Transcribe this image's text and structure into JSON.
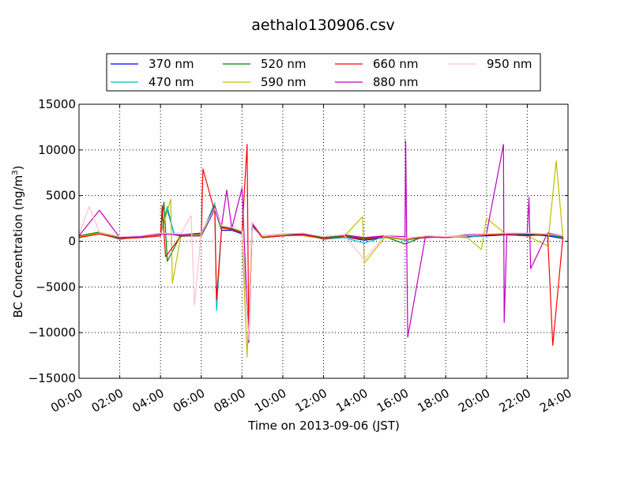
{
  "chart_data": {
    "type": "line",
    "title": "aethalo130906.csv",
    "xlabel": "Time on 2013-09-06 (JST)",
    "ylabel": "BC Concentration (ng/m³)",
    "ylabel_main": "BC Concentration (ng/m",
    "ylabel_sup": "3",
    "ylabel_end": ")",
    "xlim": [
      "2013-09-06 00:00",
      "2013-09-06 24:00"
    ],
    "ylim": [
      -15000,
      15000
    ],
    "x_ticks": [
      "00:00",
      "02:00",
      "04:00",
      "06:00",
      "08:00",
      "10:00",
      "12:00",
      "14:00",
      "16:00",
      "18:00",
      "20:00",
      "22:00",
      "24:00"
    ],
    "y_ticks": [
      "−15000",
      "−10000",
      "−5000",
      "0",
      "5000",
      "10000",
      "15000"
    ],
    "grid": true,
    "legend_position": "top, above plot",
    "series": [
      {
        "name": "370 nm",
        "color": "#0000ff",
        "x": [
          "00:00",
          "01:00",
          "02:00",
          "03:00",
          "04:00",
          "04:20",
          "04:40",
          "05:00",
          "06:00",
          "06:40",
          "07:00",
          "07:30",
          "08:00",
          "08:20",
          "08:30",
          "09:00",
          "10:00",
          "11:00",
          "12:00",
          "13:00",
          "14:00",
          "15:00",
          "16:00",
          "17:00",
          "18:00",
          "19:00",
          "20:00",
          "21:00",
          "22:00",
          "23:00",
          "23:45"
        ],
        "y": [
          500,
          800,
          300,
          400,
          600,
          3500,
          800,
          600,
          600,
          3500,
          1200,
          1200,
          800,
          -10500,
          1800,
          400,
          600,
          700,
          300,
          500,
          100,
          400,
          200,
          500,
          400,
          500,
          600,
          700,
          700,
          600,
          300
        ]
      },
      {
        "name": "470 nm",
        "color": "#00bfbf",
        "x": [
          "00:00",
          "01:00",
          "02:00",
          "03:00",
          "04:00",
          "04:20",
          "04:40",
          "05:00",
          "06:00",
          "06:40",
          "06:45",
          "07:00",
          "07:30",
          "08:00",
          "08:20",
          "08:30",
          "09:00",
          "10:00",
          "11:00",
          "12:00",
          "13:00",
          "14:00",
          "15:00",
          "16:00",
          "17:00",
          "18:00",
          "19:00",
          "20:00",
          "21:00",
          "22:00",
          "23:00",
          "23:45"
        ],
        "y": [
          400,
          900,
          200,
          500,
          700,
          3800,
          700,
          500,
          700,
          4200,
          -7600,
          1500,
          1300,
          900,
          -11000,
          1600,
          500,
          700,
          800,
          200,
          400,
          -200,
          500,
          100,
          400,
          500,
          400,
          700,
          700,
          600,
          700,
          400
        ]
      },
      {
        "name": "520 nm",
        "color": "#007f00",
        "x": [
          "00:00",
          "01:00",
          "02:00",
          "03:00",
          "04:00",
          "04:10",
          "04:20",
          "05:00",
          "06:00",
          "06:40",
          "07:00",
          "07:30",
          "08:00",
          "08:20",
          "08:30",
          "09:00",
          "10:00",
          "11:00",
          "12:00",
          "13:00",
          "14:00",
          "15:00",
          "16:00",
          "17:00",
          "18:00",
          "19:00",
          "20:00",
          "21:00",
          "22:00",
          "23:00",
          "23:45"
        ],
        "y": [
          600,
          1000,
          400,
          500,
          800,
          4300,
          -2200,
          700,
          800,
          3900,
          1600,
          1400,
          1000,
          -9800,
          2000,
          500,
          800,
          700,
          400,
          600,
          300,
          500,
          -300,
          600,
          500,
          600,
          700,
          800,
          800,
          700,
          500
        ]
      },
      {
        "name": "590 nm",
        "color": "#bfbf00",
        "x": [
          "00:00",
          "01:00",
          "02:00",
          "03:00",
          "04:00",
          "04:30",
          "04:35",
          "05:00",
          "06:00",
          "06:40",
          "07:00",
          "07:30",
          "08:00",
          "08:15",
          "08:30",
          "09:00",
          "10:00",
          "11:00",
          "12:00",
          "13:00",
          "13:55",
          "14:00",
          "15:00",
          "16:00",
          "17:00",
          "18:00",
          "19:00",
          "19:45",
          "20:00",
          "21:00",
          "22:00",
          "23:00",
          "23:25",
          "23:45"
        ],
        "y": [
          500,
          900,
          300,
          400,
          700,
          4600,
          -4600,
          600,
          700,
          3700,
          1400,
          1300,
          900,
          -12700,
          1900,
          500,
          700,
          600,
          300,
          500,
          2700,
          -2400,
          400,
          200,
          500,
          400,
          500,
          -900,
          2500,
          700,
          600,
          -500,
          8800,
          400
        ]
      },
      {
        "name": "660 nm",
        "color": "#ff0000",
        "x": [
          "00:00",
          "01:00",
          "02:00",
          "03:00",
          "04:00",
          "04:05",
          "04:15",
          "05:00",
          "06:00",
          "06:05",
          "06:40",
          "06:45",
          "07:00",
          "07:30",
          "08:00",
          "08:15",
          "08:20",
          "08:30",
          "09:00",
          "10:00",
          "11:00",
          "12:00",
          "13:00",
          "14:00",
          "15:00",
          "16:00",
          "17:00",
          "18:00",
          "19:00",
          "20:00",
          "21:00",
          "22:00",
          "23:00",
          "23:15",
          "23:45"
        ],
        "y": [
          400,
          800,
          300,
          400,
          600,
          3900,
          -1700,
          600,
          600,
          7900,
          3200,
          -6400,
          1500,
          1300,
          900,
          10600,
          -11000,
          1900,
          400,
          600,
          700,
          300,
          500,
          200,
          500,
          300,
          400,
          500,
          600,
          700,
          700,
          600,
          800,
          -11400,
          500
        ]
      },
      {
        "name": "880 nm",
        "color": "#bf00bf",
        "x": [
          "00:00",
          "01:00",
          "02:00",
          "03:00",
          "04:00",
          "05:00",
          "06:00",
          "06:40",
          "07:00",
          "07:15",
          "07:30",
          "08:00",
          "08:20",
          "08:30",
          "09:00",
          "10:00",
          "11:00",
          "12:00",
          "13:00",
          "14:00",
          "15:00",
          "16:00",
          "16:02",
          "16:08",
          "17:00",
          "18:00",
          "19:00",
          "20:00",
          "20:50",
          "20:52",
          "21:00",
          "22:00",
          "22:05",
          "22:10",
          "23:00",
          "23:45"
        ],
        "y": [
          600,
          3400,
          400,
          500,
          800,
          700,
          900,
          3800,
          1700,
          5600,
          1400,
          5800,
          -11100,
          2000,
          600,
          800,
          800,
          500,
          700,
          400,
          600,
          500,
          11000,
          -10500,
          500,
          400,
          700,
          800,
          10600,
          -8900,
          800,
          900,
          4800,
          -3000,
          900,
          600
        ]
      },
      {
        "name": "950 nm",
        "color": "#ffc0cb",
        "x": [
          "00:00",
          "00:30",
          "01:00",
          "02:00",
          "03:00",
          "04:00",
          "05:00",
          "05:30",
          "05:40",
          "06:00",
          "06:40",
          "07:00",
          "07:30",
          "08:00",
          "08:20",
          "08:30",
          "09:00",
          "10:00",
          "11:00",
          "12:00",
          "13:00",
          "14:00",
          "15:00",
          "16:00",
          "17:00",
          "18:00",
          "19:00",
          "20:00",
          "21:00",
          "22:00",
          "23:00",
          "23:45"
        ],
        "y": [
          700,
          3800,
          1000,
          500,
          600,
          900,
          800,
          2800,
          -7000,
          1000,
          3600,
          1700,
          1500,
          1100,
          -10800,
          2100,
          600,
          800,
          900,
          500,
          700,
          -2000,
          600,
          300,
          600,
          500,
          600,
          800,
          900,
          900,
          800,
          600
        ]
      }
    ]
  }
}
